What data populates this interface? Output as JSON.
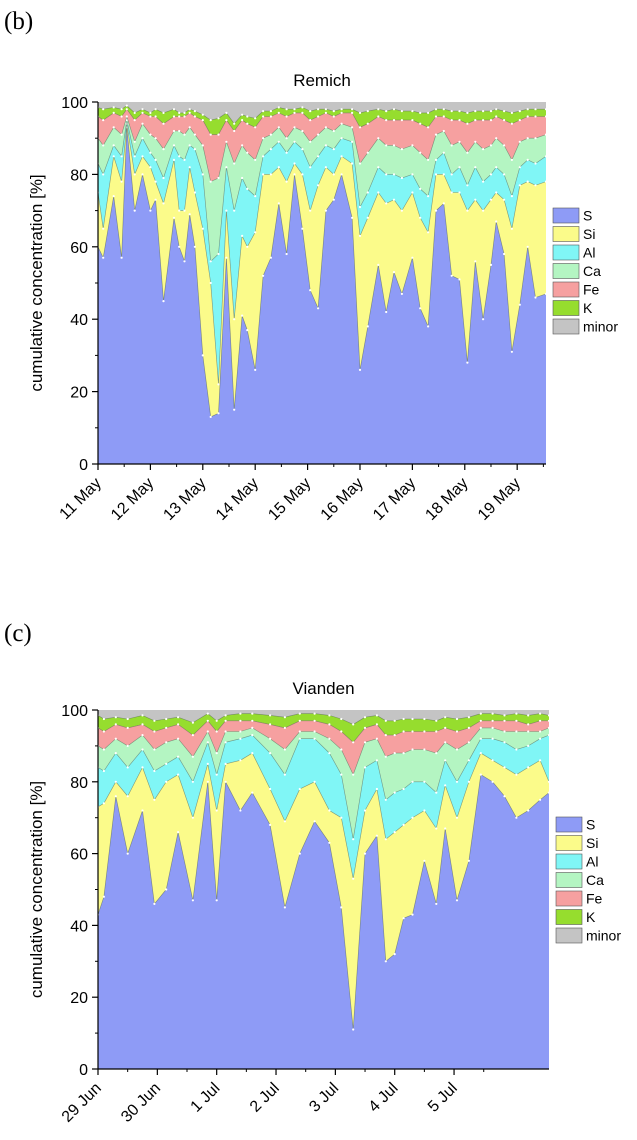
{
  "panels": [
    {
      "label": "(b)"
    },
    {
      "label": "(c)"
    }
  ],
  "legend_colors": {
    "S": "#8e9bf6",
    "Si": "#fbfb8a",
    "Al": "#80f6f6",
    "Ca": "#b4f5c2",
    "Fe": "#f6a0a0",
    "K": "#96dd2e",
    "minor": "#c4c4c4"
  },
  "chart_data": [
    {
      "type": "area",
      "stacked": true,
      "title": "Remich",
      "ylabel": "cumulative concentration [%]",
      "xlabel": "",
      "ylim": [
        0,
        100
      ],
      "yticks": [
        0,
        20,
        40,
        60,
        80,
        100
      ],
      "xlim_days": [
        0,
        8.55
      ],
      "xtick_labels": [
        "11 May",
        "12 May",
        "13 May",
        "14 May",
        "15 May",
        "16 May",
        "17 May",
        "18 May",
        "19 May"
      ],
      "grid": false,
      "legend_position": "right",
      "x_days": [
        0,
        0.1,
        0.3,
        0.45,
        0.55,
        0.7,
        0.85,
        1.0,
        1.1,
        1.25,
        1.45,
        1.55,
        1.65,
        1.75,
        1.85,
        2.0,
        2.15,
        2.3,
        2.45,
        2.6,
        2.75,
        2.85,
        3.0,
        3.15,
        3.3,
        3.45,
        3.6,
        3.75,
        3.9,
        4.05,
        4.2,
        4.35,
        4.5,
        4.65,
        4.85,
        5.0,
        5.15,
        5.35,
        5.5,
        5.65,
        5.8,
        6.0,
        6.15,
        6.3,
        6.45,
        6.6,
        6.75,
        6.9,
        7.05,
        7.2,
        7.35,
        7.5,
        7.6,
        7.75,
        7.9,
        8.05,
        8.2,
        8.35,
        8.55
      ],
      "series": [
        {
          "name": "S",
          "cumulative": [
            60,
            57,
            74,
            57,
            93,
            70,
            80,
            70,
            73,
            45,
            68,
            60,
            56,
            69,
            60,
            30,
            13,
            14,
            57,
            15,
            41,
            37,
            26,
            52,
            57,
            72,
            58,
            80,
            65,
            48,
            43,
            70,
            73,
            80,
            68,
            26,
            38,
            55,
            42,
            53,
            47,
            57,
            43,
            38,
            70,
            72,
            52,
            51,
            28,
            56,
            40,
            55,
            67,
            58,
            31,
            44,
            60,
            46,
            47
          ]
        },
        {
          "name": "Si",
          "cumulative": [
            75,
            65,
            85,
            78,
            94,
            80,
            85,
            82,
            78,
            72,
            84,
            70,
            70,
            82,
            75,
            65,
            50,
            22,
            70,
            40,
            63,
            60,
            64,
            80,
            80,
            82,
            78,
            83,
            80,
            70,
            77,
            82,
            80,
            85,
            83,
            63,
            68,
            75,
            72,
            73,
            70,
            75,
            68,
            64,
            80,
            80,
            75,
            75,
            70,
            73,
            70,
            73,
            75,
            73,
            65,
            77,
            78,
            77,
            78
          ]
        },
        {
          "name": "Al",
          "cumulative": [
            83,
            80,
            88,
            85,
            95,
            85,
            90,
            86,
            84,
            79,
            88,
            85,
            84,
            88,
            87,
            80,
            56,
            58,
            82,
            70,
            79,
            76,
            74,
            85,
            87,
            89,
            86,
            89,
            87,
            82,
            85,
            88,
            87,
            90,
            89,
            71,
            75,
            82,
            80,
            80,
            79,
            80,
            76,
            74,
            84,
            86,
            80,
            82,
            77,
            82,
            78,
            80,
            82,
            80,
            74,
            82,
            84,
            83,
            85
          ]
        },
        {
          "name": "Ca",
          "cumulative": [
            90,
            88,
            93,
            91,
            96,
            89,
            94,
            91,
            90,
            87,
            92,
            92,
            91,
            93,
            91,
            88,
            78,
            79,
            89,
            83,
            88,
            86,
            84,
            90,
            91,
            93,
            90,
            93,
            92,
            89,
            91,
            93,
            92,
            94,
            93,
            83,
            86,
            90,
            88,
            88,
            87,
            88,
            86,
            84,
            91,
            92,
            88,
            89,
            86,
            89,
            87,
            88,
            90,
            88,
            84,
            89,
            90,
            90,
            91
          ]
        },
        {
          "name": "Fe",
          "cumulative": [
            96,
            95,
            97,
            96,
            98,
            95,
            97,
            96,
            96,
            94,
            96,
            96,
            96,
            97,
            96,
            95,
            91,
            91,
            95,
            92,
            95,
            94,
            93,
            96,
            96,
            97,
            96,
            97,
            97,
            95,
            96,
            97,
            96,
            97,
            97,
            93,
            94,
            96,
            95,
            95,
            95,
            95,
            94,
            93,
            96,
            96,
            95,
            95,
            94,
            95,
            95,
            95,
            96,
            95,
            94,
            95,
            96,
            96,
            96
          ]
        },
        {
          "name": "K",
          "cumulative": [
            98.5,
            98,
            98.5,
            98,
            99,
            97,
            98,
            97,
            98,
            97,
            98,
            97,
            97,
            98,
            97.5,
            96.5,
            95,
            95.5,
            97,
            94,
            96.5,
            96,
            95.5,
            97.5,
            97.5,
            98.5,
            98,
            98,
            98.5,
            97.5,
            98,
            98,
            97.5,
            98,
            98,
            97,
            97.5,
            98,
            97.5,
            98,
            97.5,
            97.5,
            97,
            97,
            98,
            98,
            97.5,
            97.5,
            97,
            97.5,
            97.5,
            97.5,
            98,
            97.5,
            97,
            97.5,
            98,
            98,
            98
          ]
        },
        {
          "name": "minor",
          "cumulative": [
            100,
            100,
            100,
            100,
            100,
            100,
            100,
            100,
            100,
            100,
            100,
            100,
            100,
            100,
            100,
            100,
            100,
            100,
            100,
            100,
            100,
            100,
            100,
            100,
            100,
            100,
            100,
            100,
            100,
            100,
            100,
            100,
            100,
            100,
            100,
            100,
            100,
            100,
            100,
            100,
            100,
            100,
            100,
            100,
            100,
            100,
            100,
            100,
            100,
            100,
            100,
            100,
            100,
            100,
            100,
            100,
            100,
            100,
            100
          ]
        }
      ]
    },
    {
      "type": "area",
      "stacked": true,
      "title": "Vianden",
      "ylabel": "cumulative concentration [%]",
      "xlabel": "",
      "ylim": [
        0,
        100
      ],
      "yticks": [
        0,
        20,
        40,
        60,
        80,
        100
      ],
      "xlim_days": [
        0,
        7.6
      ],
      "xtick_labels": [
        "29 Jun",
        "30 Jun",
        "1 Jul",
        "2 Jul",
        "3 Jul",
        "4 Jul",
        "5 Jul"
      ],
      "grid": false,
      "legend_position": "right",
      "x_days": [
        0,
        0.1,
        0.3,
        0.5,
        0.75,
        0.95,
        1.15,
        1.35,
        1.6,
        1.85,
        2.0,
        2.15,
        2.4,
        2.6,
        2.9,
        3.15,
        3.4,
        3.65,
        3.9,
        4.1,
        4.3,
        4.5,
        4.7,
        4.85,
        5.0,
        5.15,
        5.3,
        5.5,
        5.7,
        5.85,
        6.05,
        6.25,
        6.45,
        6.65,
        6.85,
        7.05,
        7.25,
        7.45,
        7.6
      ],
      "series": [
        {
          "name": "S",
          "cumulative": [
            43,
            48,
            76,
            60,
            72,
            46,
            50,
            66,
            47,
            80,
            47,
            80,
            72,
            77,
            68,
            45,
            60,
            69,
            63,
            45,
            11,
            60,
            65,
            30,
            32,
            42,
            43,
            58,
            46,
            67,
            47,
            58,
            82,
            80,
            76,
            70,
            72,
            75,
            77
          ]
        },
        {
          "name": "Si",
          "cumulative": [
            73,
            74,
            80,
            76,
            84,
            75,
            80,
            82,
            70,
            85,
            72,
            85,
            86,
            88,
            78,
            69,
            78,
            80,
            72,
            70,
            53,
            72,
            78,
            64,
            66,
            68,
            70,
            72,
            67,
            79,
            70,
            80,
            88,
            86,
            84,
            82,
            84,
            86,
            80
          ]
        },
        {
          "name": "Al",
          "cumulative": [
            84,
            83,
            88,
            84,
            89,
            83,
            85,
            87,
            80,
            91,
            82,
            91,
            92,
            93,
            88,
            82,
            92,
            92,
            88,
            82,
            64,
            84,
            86,
            75,
            77,
            78,
            80,
            80,
            77,
            86,
            80,
            86,
            92,
            92,
            91,
            89,
            90,
            92,
            93
          ]
        },
        {
          "name": "Ca",
          "cumulative": [
            90,
            89,
            92,
            90,
            93,
            89,
            91,
            92,
            87,
            94,
            88,
            94,
            94,
            95,
            92,
            89,
            94,
            94,
            92,
            89,
            82,
            91,
            92,
            87,
            88,
            88,
            89,
            89,
            88,
            91,
            89,
            91,
            95,
            95,
            94,
            94,
            94,
            94,
            95
          ]
        },
        {
          "name": "Fe",
          "cumulative": [
            95,
            94,
            96,
            95,
            96,
            94,
            95,
            96,
            93,
            97,
            94,
            97,
            97,
            97,
            96,
            95,
            97,
            97,
            96,
            94,
            91,
            95,
            96,
            93,
            93,
            94,
            94,
            94,
            94,
            95,
            94,
            95,
            97,
            97,
            97,
            97,
            96,
            97,
            97
          ]
        },
        {
          "name": "K",
          "cumulative": [
            98.5,
            97.5,
            98,
            97.5,
            98.5,
            97,
            97.5,
            98,
            96.5,
            99,
            97,
            98.5,
            99,
            99,
            98.5,
            98,
            99,
            99,
            98.5,
            97.5,
            96,
            98,
            98.5,
            97,
            97,
            97.5,
            97.5,
            97.5,
            97,
            98,
            97.5,
            98,
            99,
            99,
            98.5,
            99,
            98.5,
            99,
            98.5
          ]
        },
        {
          "name": "minor",
          "cumulative": [
            100,
            100,
            100,
            100,
            100,
            100,
            100,
            100,
            100,
            100,
            100,
            100,
            100,
            100,
            100,
            100,
            100,
            100,
            100,
            100,
            100,
            100,
            100,
            100,
            100,
            100,
            100,
            100,
            100,
            100,
            100,
            100,
            100,
            100,
            100,
            100,
            100,
            100,
            100
          ]
        }
      ]
    }
  ]
}
